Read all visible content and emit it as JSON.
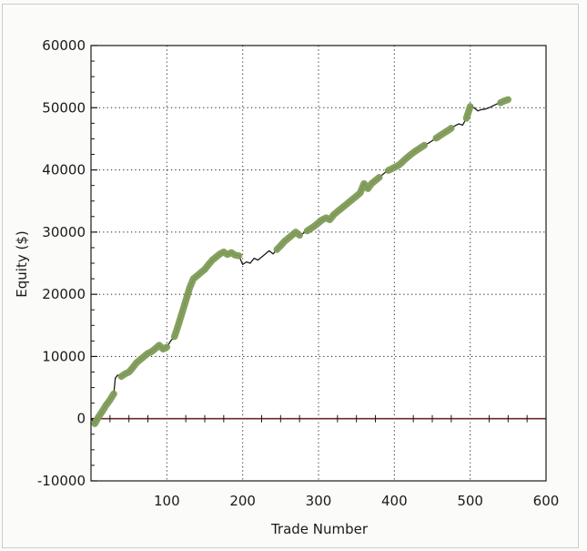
{
  "chart_data": {
    "type": "line",
    "xlabel": "Trade Number",
    "ylabel": "Equity ($)",
    "xlim": [
      0,
      600
    ],
    "ylim": [
      -10000,
      60000
    ],
    "x_ticks": [
      "100",
      "200",
      "300",
      "400",
      "500",
      "600"
    ],
    "y_ticks": [
      "60000",
      "50000",
      "40000",
      "30000",
      "20000",
      "10000",
      "0",
      "-10000"
    ],
    "grid": true,
    "legend": "none",
    "colors": {
      "equity_line": "#1a1a1a",
      "highlight": "#7e9b56",
      "zero_line": "#6b2a2a",
      "grid": "#333333"
    },
    "series": [
      {
        "values_x": [
          0,
          5,
          10,
          15,
          20,
          25,
          30,
          32,
          35,
          40,
          45,
          50,
          55,
          60,
          65,
          70,
          75,
          80,
          85,
          90,
          95,
          100,
          105,
          110,
          115,
          120,
          125,
          130,
          135,
          140,
          145,
          150,
          155,
          160,
          165,
          170,
          175,
          180,
          185,
          190,
          195,
          200,
          205,
          210,
          215,
          220,
          225,
          230,
          235,
          240,
          245,
          250,
          255,
          260,
          265,
          270,
          275,
          280,
          285,
          290,
          295,
          300,
          305,
          310,
          315,
          320,
          325,
          330,
          335,
          340,
          345,
          350,
          355,
          360,
          365,
          370,
          375,
          380,
          385,
          390,
          395,
          400,
          405,
          410,
          415,
          420,
          425,
          430,
          435,
          440,
          445,
          450,
          455,
          460,
          465,
          470,
          475,
          480,
          485,
          490,
          495,
          500,
          505,
          510,
          515,
          520,
          525,
          530,
          535,
          540,
          545,
          550
        ],
        "values_y": [
          0,
          -800,
          300,
          1200,
          2200,
          3000,
          4000,
          6500,
          7000,
          6800,
          7200,
          7500,
          8200,
          9000,
          9500,
          10000,
          10500,
          10800,
          11300,
          11800,
          11200,
          11500,
          12500,
          13200,
          15000,
          17000,
          19000,
          21000,
          22500,
          23000,
          23500,
          24000,
          24800,
          25500,
          26000,
          26500,
          26800,
          26400,
          26700,
          26300,
          26200,
          24800,
          25200,
          25000,
          25800,
          25500,
          26000,
          26500,
          27000,
          26500,
          27200,
          27800,
          28500,
          29000,
          29500,
          30000,
          29500,
          29800,
          30200,
          30600,
          31000,
          31500,
          32000,
          32300,
          32000,
          32800,
          33300,
          33800,
          34300,
          34800,
          35300,
          35800,
          36300,
          37800,
          37000,
          37800,
          38300,
          38800,
          39300,
          39800,
          40100,
          40400,
          40700,
          41200,
          41800,
          42300,
          42800,
          43200,
          43600,
          44000,
          44300,
          44700,
          45100,
          45500,
          45900,
          46300,
          46700,
          47100,
          47400,
          47200,
          48300,
          50200,
          50000,
          49500,
          49700,
          49800,
          50000,
          50300,
          50600,
          50800,
          51100,
          51300
        ],
        "highlight_ranges": [
          [
            5,
            32
          ],
          [
            40,
            100
          ],
          [
            110,
            195
          ],
          [
            245,
            275
          ],
          [
            285,
            380
          ],
          [
            392,
            440
          ],
          [
            455,
            475
          ],
          [
            495,
            500
          ],
          [
            540,
            550
          ]
        ]
      }
    ]
  }
}
